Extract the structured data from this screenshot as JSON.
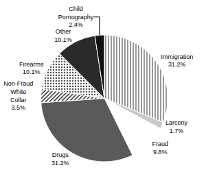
{
  "chart_data": {
    "type": "pie",
    "categories": [
      "Immigration",
      "Larceny",
      "Fraud",
      "Drugs",
      "Non-Fraud White Collar",
      "Firearms",
      "Other",
      "Child Pornography"
    ],
    "values": [
      31.2,
      1.7,
      9.8,
      31.2,
      3.5,
      10.1,
      10.1,
      2.4
    ],
    "value_labels": [
      "31.2%",
      "1.7%",
      "9.8%",
      "31.2%",
      "3.5%",
      "10.1%",
      "10.1%",
      "2.4%"
    ],
    "colors": [
      "#d9d9d9",
      "#c8c8c8",
      "#3a3a3a",
      "#5a5a5a",
      "#8a8a8a",
      "#bdbdbd",
      "#2a2a2a",
      "#111111"
    ],
    "data_labels": true
  }
}
